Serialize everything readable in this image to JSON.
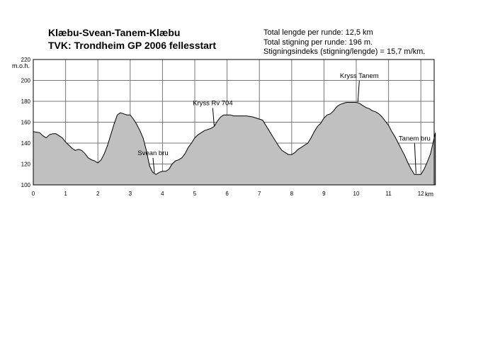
{
  "header": {
    "title_line1": "Klæbu-Svean-Tanem-Klæbu",
    "title_line2": "TVK: Trondheim GP 2006 fellesstart"
  },
  "stats": {
    "line1": "Total lengde per runde: 12,5 km",
    "line2": "Total stigning per runde: 196 m.",
    "line3": "Stigningsindeks (stigning/lengde) = 15,7 m/km."
  },
  "chart_data": {
    "type": "area",
    "ylabel": "m.o.h.",
    "xlabel": "km",
    "xlim": [
      0,
      12.45
    ],
    "ylim": [
      100,
      220
    ],
    "xticks": [
      0,
      1,
      2,
      3,
      4,
      5,
      6,
      7,
      8,
      9,
      10,
      11,
      12
    ],
    "yticks": [
      100,
      120,
      140,
      160,
      180,
      200,
      220
    ],
    "grid": true,
    "fill_color": "#c0c0c0",
    "line_color": "#000000",
    "series": [
      {
        "x": [
          0,
          0.2,
          0.3,
          0.4,
          0.5,
          0.6,
          0.7,
          0.8,
          0.9,
          1.0,
          1.1,
          1.2,
          1.3,
          1.4,
          1.5,
          1.6,
          1.7,
          1.8,
          1.9,
          2.0,
          2.1,
          2.2,
          2.3,
          2.4,
          2.5,
          2.6,
          2.7,
          2.8,
          2.9,
          3.0,
          3.1,
          3.2,
          3.3,
          3.4,
          3.5,
          3.6,
          3.7,
          3.8,
          3.9,
          4.0,
          4.1,
          4.2,
          4.3,
          4.4,
          4.5,
          4.6,
          4.7,
          4.8,
          4.9,
          5.0,
          5.1,
          5.2,
          5.3,
          5.4,
          5.5,
          5.6,
          5.7,
          5.8,
          5.9,
          6.0,
          6.1,
          6.2,
          6.4,
          6.6,
          6.8,
          7.0,
          7.1,
          7.2,
          7.3,
          7.4,
          7.5,
          7.6,
          7.7,
          7.8,
          7.9,
          8.0,
          8.1,
          8.2,
          8.3,
          8.4,
          8.5,
          8.6,
          8.7,
          8.8,
          8.9,
          9.0,
          9.1,
          9.2,
          9.3,
          9.4,
          9.5,
          9.6,
          9.7,
          9.8,
          9.9,
          10.0,
          10.1,
          10.2,
          10.3,
          10.4,
          10.5,
          10.6,
          10.7,
          10.8,
          10.9,
          11.0,
          11.1,
          11.2,
          11.3,
          11.4,
          11.5,
          11.6,
          11.7,
          11.8,
          11.9,
          12.0,
          12.1,
          12.2,
          12.3,
          12.45
        ],
        "y": [
          151,
          150,
          147,
          145,
          148,
          149,
          149,
          147,
          145,
          141,
          138,
          135,
          133,
          134,
          133,
          130,
          126,
          124,
          123,
          121,
          124,
          130,
          138,
          148,
          158,
          167,
          169,
          168,
          167,
          167,
          163,
          158,
          152,
          145,
          133,
          118,
          112,
          110,
          112,
          113,
          113,
          115,
          120,
          123,
          124,
          126,
          130,
          136,
          140,
          145,
          148,
          150,
          152,
          153,
          154,
          156,
          161,
          165,
          167,
          167,
          167,
          166,
          166,
          166,
          165,
          163,
          162,
          157,
          152,
          147,
          142,
          137,
          133,
          131,
          129,
          129,
          131,
          134,
          136,
          138,
          140,
          145,
          151,
          156,
          159,
          164,
          167,
          168,
          171,
          175,
          177,
          178,
          179,
          179,
          179,
          179,
          178,
          176,
          174,
          173,
          171,
          170,
          168,
          165,
          161,
          157,
          151,
          146,
          140,
          134,
          128,
          121,
          115,
          110,
          110,
          110,
          115,
          122,
          130,
          150
        ]
      }
    ],
    "annotations": [
      {
        "text": "Svean bru",
        "x": 3.75
      },
      {
        "text": "Kryss Rv 704",
        "x": 5.6
      },
      {
        "text": "Kryss Tanem",
        "x": 10.05
      },
      {
        "text": "Tanem bru",
        "x": 11.85
      }
    ]
  }
}
